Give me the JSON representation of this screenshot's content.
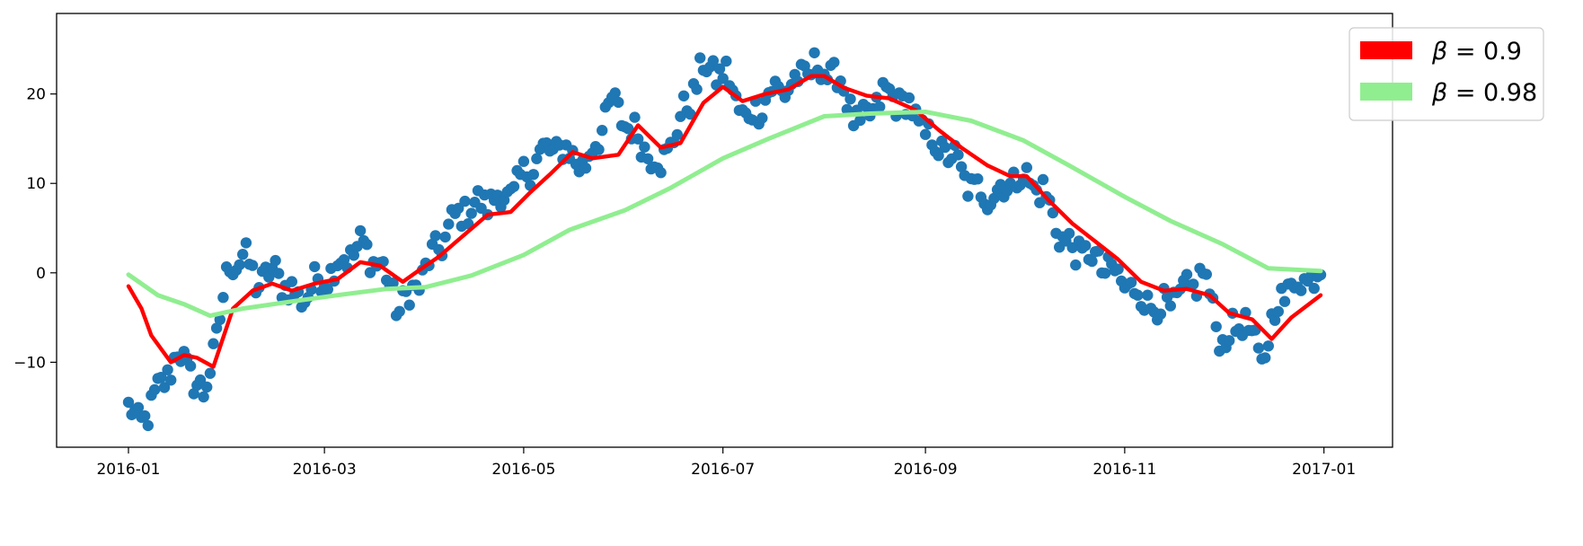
{
  "chart_data": {
    "type": "scatter",
    "title": "",
    "xlabel": "",
    "ylabel": "",
    "xlim": [
      "2015-12-10",
      "2017-01-22"
    ],
    "ylim": [
      -19.5,
      29
    ],
    "x_ticks": [
      {
        "date": "2016-01-01",
        "label": "2016-01"
      },
      {
        "date": "2016-03-01",
        "label": "2016-03"
      },
      {
        "date": "2016-05-01",
        "label": "2016-05"
      },
      {
        "date": "2016-07-01",
        "label": "2016-07"
      },
      {
        "date": "2016-09-01",
        "label": "2016-09"
      },
      {
        "date": "2016-11-01",
        "label": "2016-11"
      },
      {
        "date": "2017-01-01",
        "label": "2017-01"
      }
    ],
    "y_ticks": [
      {
        "value": -10,
        "label": "−10"
      },
      {
        "value": 0,
        "label": "0"
      },
      {
        "value": 10,
        "label": "10"
      },
      {
        "value": 20,
        "label": "20"
      }
    ],
    "grid": false,
    "legend_position": "top-right",
    "legend": [
      {
        "prefix": "β",
        "label": " = 0.9",
        "color": "#ff0000"
      },
      {
        "prefix": "β",
        "label": " = 0.98",
        "color": "#90ee90"
      }
    ],
    "scatter_color": "#1f77b4",
    "scatter_anchors": [
      [
        "2016-01-01",
        -15
      ],
      [
        "2016-01-04",
        -17
      ],
      [
        "2016-01-08",
        -15
      ],
      [
        "2016-01-12",
        -12
      ],
      [
        "2016-01-16",
        -9
      ],
      [
        "2016-01-20",
        -11
      ],
      [
        "2016-01-24",
        -14
      ],
      [
        "2016-01-28",
        -7
      ],
      [
        "2016-02-01",
        1
      ],
      [
        "2016-02-05",
        2
      ],
      [
        "2016-02-09",
        -1
      ],
      [
        "2016-02-15",
        0
      ],
      [
        "2016-02-22",
        -3
      ],
      [
        "2016-02-28",
        -1
      ],
      [
        "2016-03-05",
        1
      ],
      [
        "2016-03-12",
        3
      ],
      [
        "2016-03-18",
        1
      ],
      [
        "2016-03-24",
        -4
      ],
      [
        "2016-03-30",
        -1
      ],
      [
        "2016-04-05",
        3
      ],
      [
        "2016-04-12",
        7
      ],
      [
        "2016-04-20",
        8
      ],
      [
        "2016-04-28",
        9
      ],
      [
        "2016-05-05",
        13
      ],
      [
        "2016-05-12",
        14
      ],
      [
        "2016-05-20",
        12
      ],
      [
        "2016-05-28",
        19
      ],
      [
        "2016-06-05",
        15
      ],
      [
        "2016-06-12",
        12
      ],
      [
        "2016-06-18",
        17
      ],
      [
        "2016-06-25",
        23
      ],
      [
        "2016-07-02",
        22
      ],
      [
        "2016-07-08",
        17
      ],
      [
        "2016-07-15",
        20
      ],
      [
        "2016-07-22",
        21
      ],
      [
        "2016-07-29",
        23
      ],
      [
        "2016-08-05",
        22
      ],
      [
        "2016-08-12",
        16
      ],
      [
        "2016-08-19",
        20
      ],
      [
        "2016-08-26",
        19
      ],
      [
        "2016-09-02",
        15
      ],
      [
        "2016-09-09",
        13
      ],
      [
        "2016-09-16",
        9
      ],
      [
        "2016-09-23",
        9
      ],
      [
        "2016-09-30",
        11
      ],
      [
        "2016-10-07",
        9
      ],
      [
        "2016-10-14",
        3
      ],
      [
        "2016-10-21",
        2
      ],
      [
        "2016-10-28",
        0
      ],
      [
        "2016-11-04",
        -2
      ],
      [
        "2016-11-11",
        -4
      ],
      [
        "2016-11-18",
        -3
      ],
      [
        "2016-11-25",
        0
      ],
      [
        "2016-12-01",
        -8
      ],
      [
        "2016-12-07",
        -5
      ],
      [
        "2016-12-13",
        -10
      ],
      [
        "2016-12-18",
        -3
      ],
      [
        "2016-12-24",
        -1
      ],
      [
        "2016-12-31",
        0
      ]
    ],
    "series": [
      {
        "name": "β = 0.9",
        "color": "#ff0000",
        "x": [
          "2016-01-01",
          "2016-01-05",
          "2016-01-08",
          "2016-01-11",
          "2016-01-14",
          "2016-01-18",
          "2016-01-22",
          "2016-01-27",
          "2016-02-02",
          "2016-02-08",
          "2016-02-14",
          "2016-02-20",
          "2016-02-27",
          "2016-03-05",
          "2016-03-12",
          "2016-03-18",
          "2016-03-25",
          "2016-03-30",
          "2016-04-05",
          "2016-04-12",
          "2016-04-20",
          "2016-04-27",
          "2016-05-03",
          "2016-05-09",
          "2016-05-16",
          "2016-05-22",
          "2016-05-30",
          "2016-06-05",
          "2016-06-12",
          "2016-06-18",
          "2016-06-25",
          "2016-07-01",
          "2016-07-07",
          "2016-07-14",
          "2016-07-21",
          "2016-07-28",
          "2016-08-01",
          "2016-08-07",
          "2016-08-14",
          "2016-08-21",
          "2016-08-29",
          "2016-09-05",
          "2016-09-12",
          "2016-09-20",
          "2016-09-27",
          "2016-10-02",
          "2016-10-09",
          "2016-10-16",
          "2016-10-23",
          "2016-10-30",
          "2016-11-06",
          "2016-11-13",
          "2016-11-20",
          "2016-11-27",
          "2016-12-03",
          "2016-12-10",
          "2016-12-16",
          "2016-12-22",
          "2016-12-31"
        ],
        "values": [
          -1.5,
          -4,
          -7,
          -8.5,
          -10,
          -9.2,
          -9.5,
          -10.5,
          -4,
          -2,
          -1.2,
          -2,
          -1.2,
          -0.7,
          1.2,
          0.8,
          -1,
          0.3,
          1.8,
          4,
          6.5,
          6.8,
          9,
          11,
          13.5,
          12.8,
          13.2,
          16.5,
          14,
          14.5,
          19,
          20.8,
          19.2,
          20,
          20.5,
          22,
          22,
          20.7,
          19.8,
          19.5,
          18.2,
          16,
          14,
          12,
          10.8,
          10.8,
          8,
          5.5,
          3.5,
          1.5,
          -1,
          -2,
          -1.8,
          -2.5,
          -4.5,
          -5.2,
          -7.4,
          -5,
          -2.5
        ]
      },
      {
        "name": "β = 0.98",
        "color": "#90ee90",
        "x": [
          "2016-01-01",
          "2016-01-10",
          "2016-01-18",
          "2016-01-26",
          "2016-02-05",
          "2016-02-20",
          "2016-03-05",
          "2016-03-20",
          "2016-04-01",
          "2016-04-15",
          "2016-05-01",
          "2016-05-15",
          "2016-06-01",
          "2016-06-15",
          "2016-07-01",
          "2016-07-15",
          "2016-08-01",
          "2016-08-15",
          "2016-09-01",
          "2016-09-15",
          "2016-10-01",
          "2016-10-15",
          "2016-11-01",
          "2016-11-15",
          "2016-12-01",
          "2016-12-15",
          "2016-12-31"
        ],
        "values": [
          -0.2,
          -2.5,
          -3.5,
          -4.8,
          -4,
          -3.2,
          -2.5,
          -1.8,
          -1.6,
          -0.3,
          2,
          4.8,
          7,
          9.5,
          12.8,
          15,
          17.5,
          17.8,
          18,
          17,
          14.8,
          12,
          8.5,
          5.8,
          3.2,
          0.5,
          0.2
        ]
      }
    ]
  }
}
